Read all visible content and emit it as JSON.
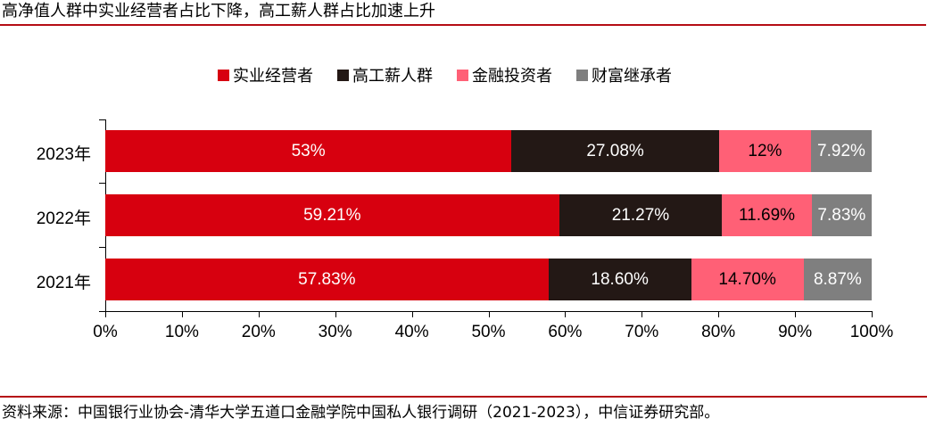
{
  "header": {
    "title": "高净值人群中实业经营者占比下降，高工薪人群占比加速上升"
  },
  "footer": {
    "source": "资料来源：中国银行业协会-清华大学五道口金融学院中国私人银行调研（2021-2023），中信证券研究部。"
  },
  "legend": [
    {
      "label": "实业经营者",
      "color": "#D7000F"
    },
    {
      "label": "高工薪人群",
      "color": "#231815"
    },
    {
      "label": "金融投资者",
      "color": "#FF6076"
    },
    {
      "label": "财富继承者",
      "color": "#7F7F7F"
    }
  ],
  "chart_data": {
    "type": "bar",
    "orientation": "horizontal",
    "stacked": true,
    "title": "高净值人群中实业经营者占比下降，高工薪人群占比加速上升",
    "categories": [
      "2023年",
      "2022年",
      "2021年"
    ],
    "series": [
      {
        "name": "实业经营者",
        "color": "#D7000F",
        "values": [
          53,
          59.21,
          57.83
        ],
        "labels": [
          "53%",
          "59.21%",
          "57.83%"
        ],
        "label_color": "#FFFFFF"
      },
      {
        "name": "高工薪人群",
        "color": "#231815",
        "values": [
          27.08,
          21.27,
          18.6
        ],
        "labels": [
          "27.08%",
          "21.27%",
          "18.60%"
        ],
        "label_color": "#FFFFFF"
      },
      {
        "name": "金融投资者",
        "color": "#FF6076",
        "values": [
          12,
          11.69,
          14.7
        ],
        "labels": [
          "12%",
          "11.69%",
          "14.70%"
        ],
        "label_color": "#000000"
      },
      {
        "name": "财富继承者",
        "color": "#7F7F7F",
        "values": [
          7.92,
          7.83,
          8.87
        ],
        "labels": [
          "7.92%",
          "7.83%",
          "8.87%"
        ],
        "label_color": "#FFFFFF"
      }
    ],
    "xlabel": "",
    "ylabel": "",
    "xlim": [
      0,
      100
    ],
    "xticks": [
      "0%",
      "10%",
      "20%",
      "30%",
      "40%",
      "50%",
      "60%",
      "70%",
      "80%",
      "90%",
      "100%"
    ],
    "grid": false,
    "legend_position": "top",
    "source": "资料来源：中国银行业协会-清华大学五道口金融学院中国私人银行调研（2021-2023），中信证券研究部。"
  }
}
